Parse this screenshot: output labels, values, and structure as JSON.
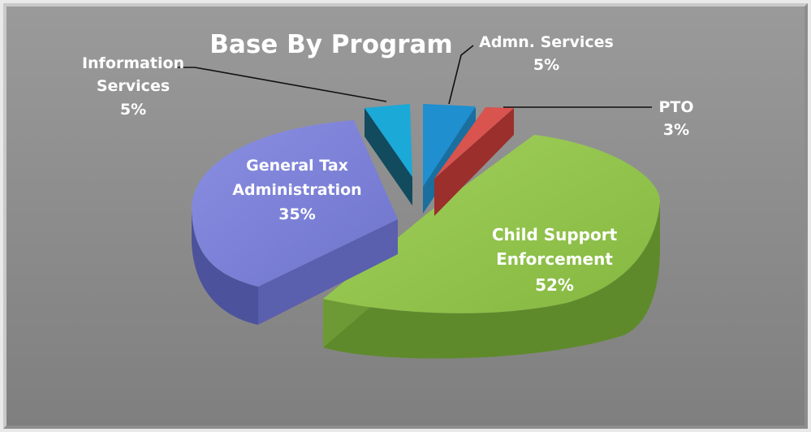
{
  "chart_data": {
    "type": "pie",
    "title": "Base By Program",
    "slices": [
      {
        "id": "adm",
        "label": "Admn. Services",
        "value": 5,
        "value_label": "5%",
        "color": "#1f8fd0"
      },
      {
        "id": "pto",
        "label": "PTO",
        "value": 3,
        "value_label": "3%",
        "color": "#d9534f"
      },
      {
        "id": "cse",
        "label": "Child Support Enforcement",
        "label_lines": [
          "Child Support",
          "Enforcement"
        ],
        "value": 52,
        "value_label": "52%",
        "color": "#8fc04a"
      },
      {
        "id": "gta",
        "label": "General Tax Administration",
        "label_lines": [
          "General Tax",
          "Administration"
        ],
        "value": 35,
        "value_label": "35%",
        "color": "#7a7fd6"
      },
      {
        "id": "inf",
        "label": "Information Services",
        "label_lines": [
          "Information",
          "Services"
        ],
        "value": 5,
        "value_label": "5%",
        "color": "#1ba9d8"
      }
    ],
    "style": "3d-exploded-pie",
    "legend": "none"
  }
}
